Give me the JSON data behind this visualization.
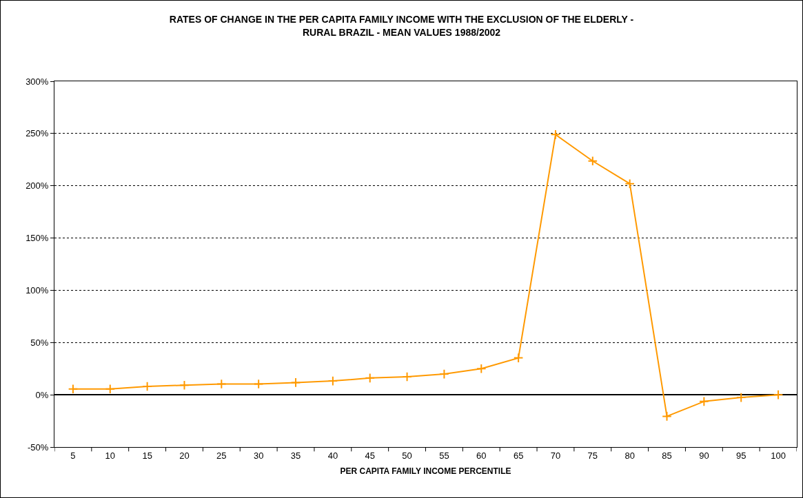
{
  "chart_data": {
    "type": "line",
    "title": "RATES OF CHANGE IN THE PER CAPITA FAMILY INCOME WITH THE EXCLUSION OF THE ELDERLY -\nRURAL BRAZIL - MEAN VALUES 1988/2002",
    "xlabel": "PER CAPITA FAMILY INCOME PERCENTILE",
    "categories": [
      "5",
      "10",
      "15",
      "20",
      "25",
      "30",
      "35",
      "40",
      "45",
      "50",
      "55",
      "60",
      "65",
      "70",
      "75",
      "80",
      "85",
      "90",
      "95",
      "100"
    ],
    "series": [
      {
        "color": "#ff9900",
        "values": [
          5.5,
          5.5,
          8,
          9.2,
          10.3,
          10.3,
          11.7,
          13.2,
          16,
          17.2,
          19.8,
          25,
          35.3,
          249,
          223.7,
          202,
          -20.6,
          -6.4,
          -2.6,
          0
        ]
      }
    ],
    "ylim": [
      -50,
      300
    ],
    "yticks": [
      {
        "value": -50,
        "label": "-50%"
      },
      {
        "value": 0,
        "label": "0%"
      },
      {
        "value": 50,
        "label": "50%"
      },
      {
        "value": 100,
        "label": "100%"
      },
      {
        "value": 150,
        "label": "150%"
      },
      {
        "value": 200,
        "label": "200%"
      },
      {
        "value": 250,
        "label": "250%"
      },
      {
        "value": 300,
        "label": "300%"
      }
    ],
    "grid": "y",
    "marker": "cross",
    "line_style": "solid"
  }
}
